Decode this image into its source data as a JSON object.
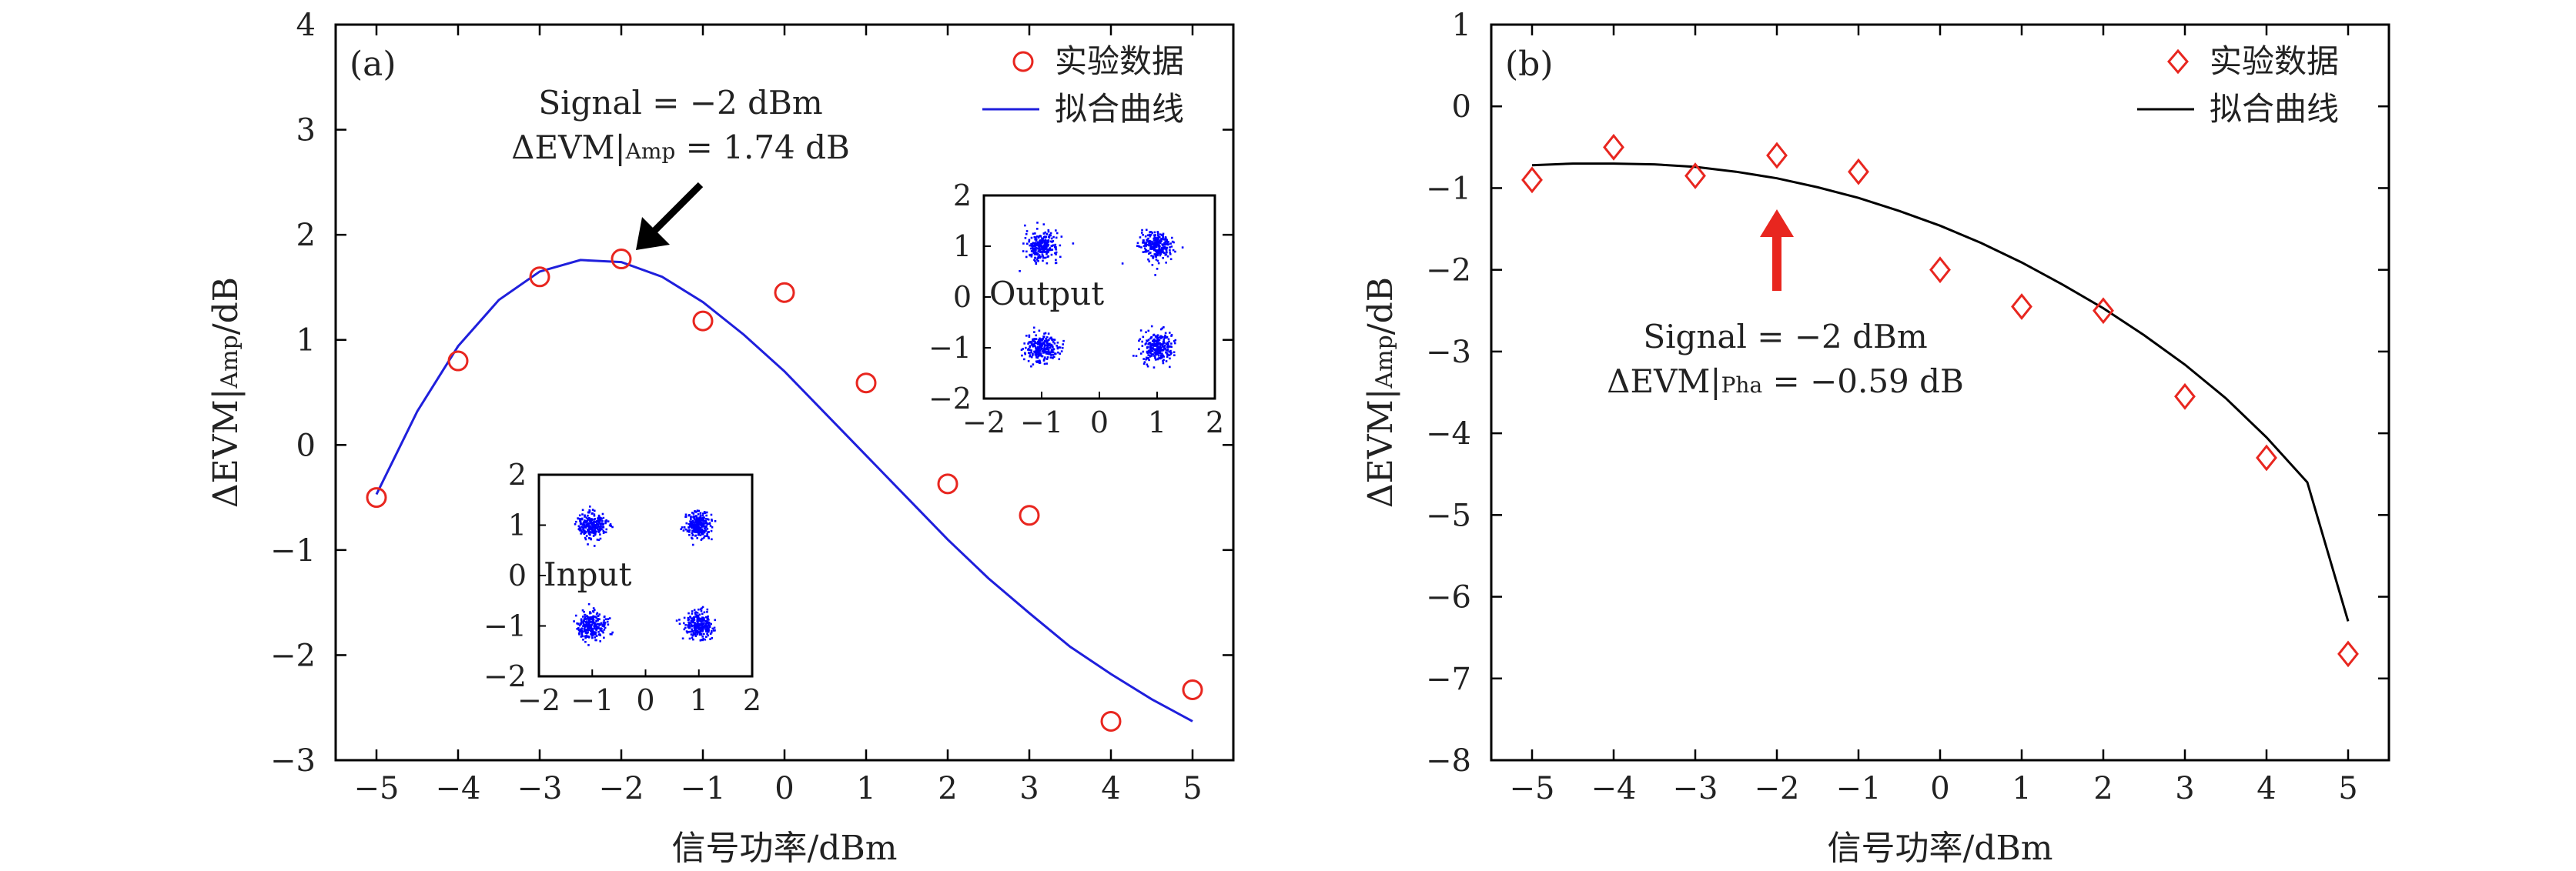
{
  "chart_data": [
    {
      "type": "scatter",
      "panel_label": "(a)",
      "xlabel": "信号功率/dBm",
      "ylabel": "ΔEVM|Amp/dB",
      "ylabel_main": "ΔEVM|",
      "ylabel_sub": "Amp",
      "ylabel_tail": "/dB",
      "xlim": [
        -5.5,
        5.5
      ],
      "ylim": [
        -3,
        4
      ],
      "xticks": [
        -5,
        -4,
        -3,
        -2,
        -1,
        0,
        1,
        2,
        3,
        4,
        5
      ],
      "yticks": [
        -3,
        -2,
        -1,
        0,
        1,
        2,
        3,
        4
      ],
      "series": [
        {
          "name": "实验数据",
          "kind": "markers",
          "marker": "circle",
          "color": "#e8261f",
          "x": [
            -5,
            -4,
            -3,
            -2,
            -1,
            0,
            1,
            2,
            3,
            4,
            5
          ],
          "y": [
            -0.5,
            0.8,
            1.6,
            1.77,
            1.18,
            1.45,
            0.59,
            -0.37,
            -0.67,
            -2.63,
            -2.33
          ]
        },
        {
          "name": "拟合曲线",
          "kind": "line",
          "color": "#1f1fdc",
          "x": [
            -5,
            -4.5,
            -4,
            -3.5,
            -3,
            -2.5,
            -2,
            -1.5,
            -1,
            -0.5,
            0,
            0.5,
            1,
            1.5,
            2,
            2.5,
            3,
            3.5,
            4,
            4.5,
            5
          ],
          "y": [
            -0.47,
            0.32,
            0.94,
            1.38,
            1.65,
            1.76,
            1.74,
            1.6,
            1.36,
            1.05,
            0.7,
            0.3,
            -0.1,
            -0.5,
            -0.9,
            -1.27,
            -1.6,
            -1.92,
            -2.18,
            -2.42,
            -2.63
          ]
        }
      ],
      "legend": [
        {
          "label": "实验数据",
          "marker": "circle",
          "color": "#e8261f"
        },
        {
          "label": "拟合曲线",
          "marker": "line",
          "color": "#1f1fdc"
        }
      ],
      "legend_position": "top-right",
      "annotation": {
        "line1": "Signal = −2 dBm",
        "line2_main": "ΔEVM|",
        "line2_sub": "Amp",
        "line2_tail": " = 1.74 dB",
        "arrow_color": "#000000",
        "arrow_points_to": [
          -2,
          1.77
        ]
      },
      "insets": [
        {
          "name": "output-constellation",
          "position": "upper-right",
          "label": "Output",
          "xlim": [
            -2,
            2
          ],
          "ylim": [
            -2,
            2
          ],
          "xticks": [
            -2,
            -1,
            0,
            1,
            2
          ],
          "yticks": [
            -2,
            -1,
            0,
            1,
            2
          ],
          "cluster_centers": [
            [
              -1,
              1
            ],
            [
              1,
              1
            ],
            [
              -1,
              -1
            ],
            [
              1,
              -1
            ]
          ],
          "color": "#0000ff"
        },
        {
          "name": "input-constellation",
          "position": "lower-center",
          "label": "Input",
          "xlim": [
            -2,
            2
          ],
          "ylim": [
            -2,
            2
          ],
          "xticks": [
            -2,
            -1,
            0,
            1,
            2
          ],
          "yticks": [
            -2,
            -1,
            0,
            1,
            2
          ],
          "cluster_centers": [
            [
              -1,
              1
            ],
            [
              1,
              1
            ],
            [
              -1,
              -1
            ],
            [
              1,
              -1
            ]
          ],
          "color": "#0000ff"
        }
      ]
    },
    {
      "type": "scatter",
      "panel_label": "(b)",
      "xlabel": "信号功率/dBm",
      "ylabel": "ΔEVM|Amp/dB",
      "ylabel_main": "ΔEVM|",
      "ylabel_sub": "Amp",
      "ylabel_tail": "/dB",
      "xlim": [
        -5.5,
        5.5
      ],
      "ylim": [
        -8,
        1
      ],
      "xticks": [
        -5,
        -4,
        -3,
        -2,
        -1,
        0,
        1,
        2,
        3,
        4,
        5
      ],
      "yticks": [
        -8,
        -7,
        -6,
        -5,
        -4,
        -3,
        -2,
        -1,
        0,
        1
      ],
      "series": [
        {
          "name": "实验数据",
          "kind": "markers",
          "marker": "diamond",
          "color": "#e8261f",
          "x": [
            -5,
            -4,
            -3,
            -2,
            -1,
            0,
            1,
            2,
            3,
            4,
            5
          ],
          "y": [
            -0.9,
            -0.5,
            -0.85,
            -0.6,
            -0.8,
            -2.0,
            -2.45,
            -2.5,
            -3.55,
            -4.3,
            -6.7
          ]
        },
        {
          "name": "拟合曲线",
          "kind": "line",
          "color": "#000000",
          "x": [
            -5,
            -4.5,
            -4,
            -3.5,
            -3,
            -2.5,
            -2,
            -1.5,
            -1,
            -0.5,
            0,
            0.5,
            1,
            1.5,
            2,
            2.5,
            3,
            3.5,
            4,
            4.5,
            5
          ],
          "y": [
            -0.72,
            -0.7,
            -0.7,
            -0.71,
            -0.74,
            -0.8,
            -0.88,
            -0.99,
            -1.12,
            -1.28,
            -1.46,
            -1.67,
            -1.91,
            -2.18,
            -2.47,
            -2.8,
            -3.16,
            -3.57,
            -4.05,
            -4.6,
            -6.3
          ]
        }
      ],
      "legend": [
        {
          "label": "实验数据",
          "marker": "diamond",
          "color": "#e8261f"
        },
        {
          "label": "拟合曲线",
          "marker": "line",
          "color": "#000000"
        }
      ],
      "legend_position": "top-right",
      "annotation": {
        "line1": "Signal = −2 dBm",
        "line2_main": "ΔEVM|",
        "line2_sub": "Pha",
        "line2_tail": " = −0.59 dB",
        "arrow_color": "#e8261f",
        "arrow_points_to": [
          -2,
          -1.3
        ]
      }
    }
  ]
}
